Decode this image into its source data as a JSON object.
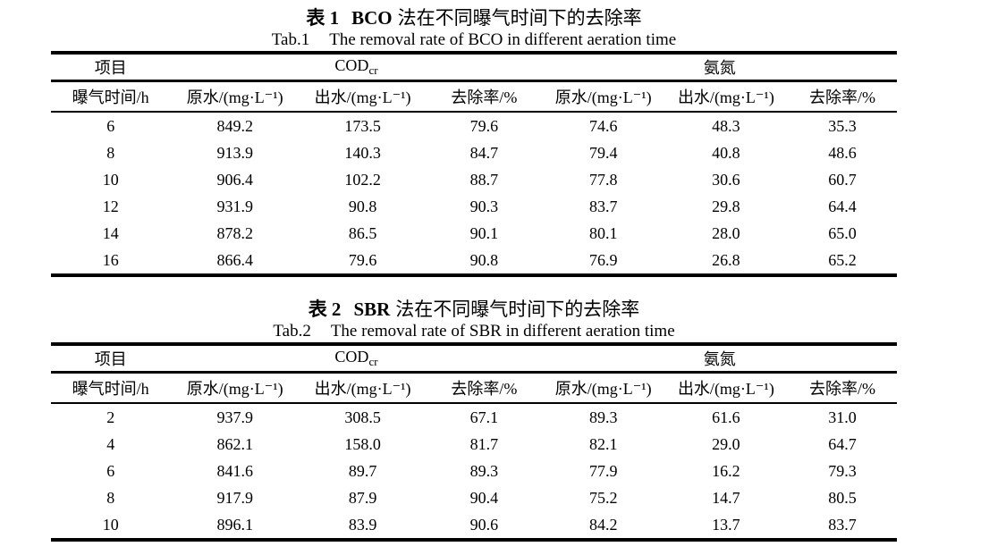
{
  "page": {
    "background": "#ffffff",
    "text_color": "#000000"
  },
  "tables": [
    {
      "caption_zh": {
        "label": "表 1",
        "method": "BCO",
        "rest": "法在不同曝气时间下的去除率"
      },
      "caption_en": {
        "label": "Tab.1",
        "text": "The removal rate of BCO in different aeration time"
      },
      "header": {
        "item_label": "项目",
        "group_cod": {
          "base": "COD",
          "sub": "cr"
        },
        "group_ammonia": "氨氮",
        "col_labels": [
          "曝气时间/h",
          "原水/(mg·L⁻¹)",
          "出水/(mg·L⁻¹)",
          "去除率/%",
          "原水/(mg·L⁻¹)",
          "出水/(mg·L⁻¹)",
          "去除率/%"
        ]
      },
      "rows": [
        [
          "6",
          "849.2",
          "173.5",
          "79.6",
          "74.6",
          "48.3",
          "35.3"
        ],
        [
          "8",
          "913.9",
          "140.3",
          "84.7",
          "79.4",
          "40.8",
          "48.6"
        ],
        [
          "10",
          "906.4",
          "102.2",
          "88.7",
          "77.8",
          "30.6",
          "60.7"
        ],
        [
          "12",
          "931.9",
          "90.8",
          "90.3",
          "83.7",
          "29.8",
          "64.4"
        ],
        [
          "14",
          "878.2",
          "86.5",
          "90.1",
          "80.1",
          "28.0",
          "65.0"
        ],
        [
          "16",
          "866.4",
          "79.6",
          "90.8",
          "76.9",
          "26.8",
          "65.2"
        ]
      ]
    },
    {
      "caption_zh": {
        "label": "表 2",
        "method": "SBR",
        "rest": "法在不同曝气时间下的去除率"
      },
      "caption_en": {
        "label": "Tab.2",
        "text": "The removal rate of SBR in different aeration time"
      },
      "header": {
        "item_label": "项目",
        "group_cod": {
          "base": "COD",
          "sub": "cr"
        },
        "group_ammonia": "氨氮",
        "col_labels": [
          "曝气时间/h",
          "原水/(mg·L⁻¹)",
          "出水/(mg·L⁻¹)",
          "去除率/%",
          "原水/(mg·L⁻¹)",
          "出水/(mg·L⁻¹)",
          "去除率/%"
        ]
      },
      "rows": [
        [
          "2",
          "937.9",
          "308.5",
          "67.1",
          "89.3",
          "61.6",
          "31.0"
        ],
        [
          "4",
          "862.1",
          "158.0",
          "81.7",
          "82.1",
          "29.0",
          "64.7"
        ],
        [
          "6",
          "841.6",
          "89.7",
          "89.3",
          "77.9",
          "16.2",
          "79.3"
        ],
        [
          "8",
          "917.9",
          "87.9",
          "90.4",
          "75.2",
          "14.7",
          "80.5"
        ],
        [
          "10",
          "896.1",
          "83.9",
          "90.6",
          "84.2",
          "13.7",
          "83.7"
        ]
      ]
    }
  ]
}
